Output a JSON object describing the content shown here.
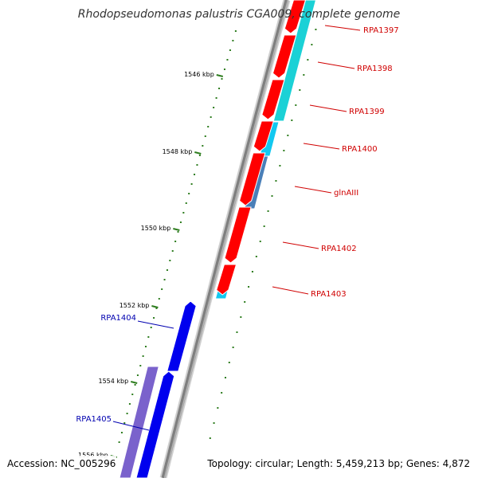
{
  "title": "Rhodopseudomonas palustris CGA009, complete genome",
  "footer": {
    "accession": "Accession: NC_005296",
    "summary": "Topology: circular; Length: 5,459,213 bp; Genes: 4,872"
  },
  "colors": {
    "background": "#ffffff",
    "backbone": "#8c8c8c",
    "tick": "#2e7d1f",
    "label_red": "#d00000",
    "label_blue": "#0000b0",
    "gene_red": "#ff0000",
    "gene_blue": "#0000ee",
    "gene_cyan": "#1bd1d6",
    "gene_lightblue": "#12c8f0",
    "gene_steelblue": "#4a7fb8",
    "gene_purple": "#7a62cc"
  },
  "ticks": [
    {
      "label": "1546 kbp"
    },
    {
      "label": "1548 kbp"
    },
    {
      "label": "1550 kbp"
    },
    {
      "label": "1552 kbp"
    },
    {
      "label": "1554 kbp"
    },
    {
      "label": "1556 kbp"
    }
  ],
  "genes": [
    {
      "label": "RPA1397",
      "color": "red"
    },
    {
      "label": "RPA1398",
      "color": "red"
    },
    {
      "label": "RPA1399",
      "color": "red"
    },
    {
      "label": "RPA1400",
      "color": "red"
    },
    {
      "label": "glnAIII",
      "color": "red"
    },
    {
      "label": "RPA1402",
      "color": "red"
    },
    {
      "label": "RPA1403",
      "color": "red"
    },
    {
      "label": "RPA1404",
      "color": "blue"
    },
    {
      "label": "RPA1405",
      "color": "blue"
    }
  ]
}
